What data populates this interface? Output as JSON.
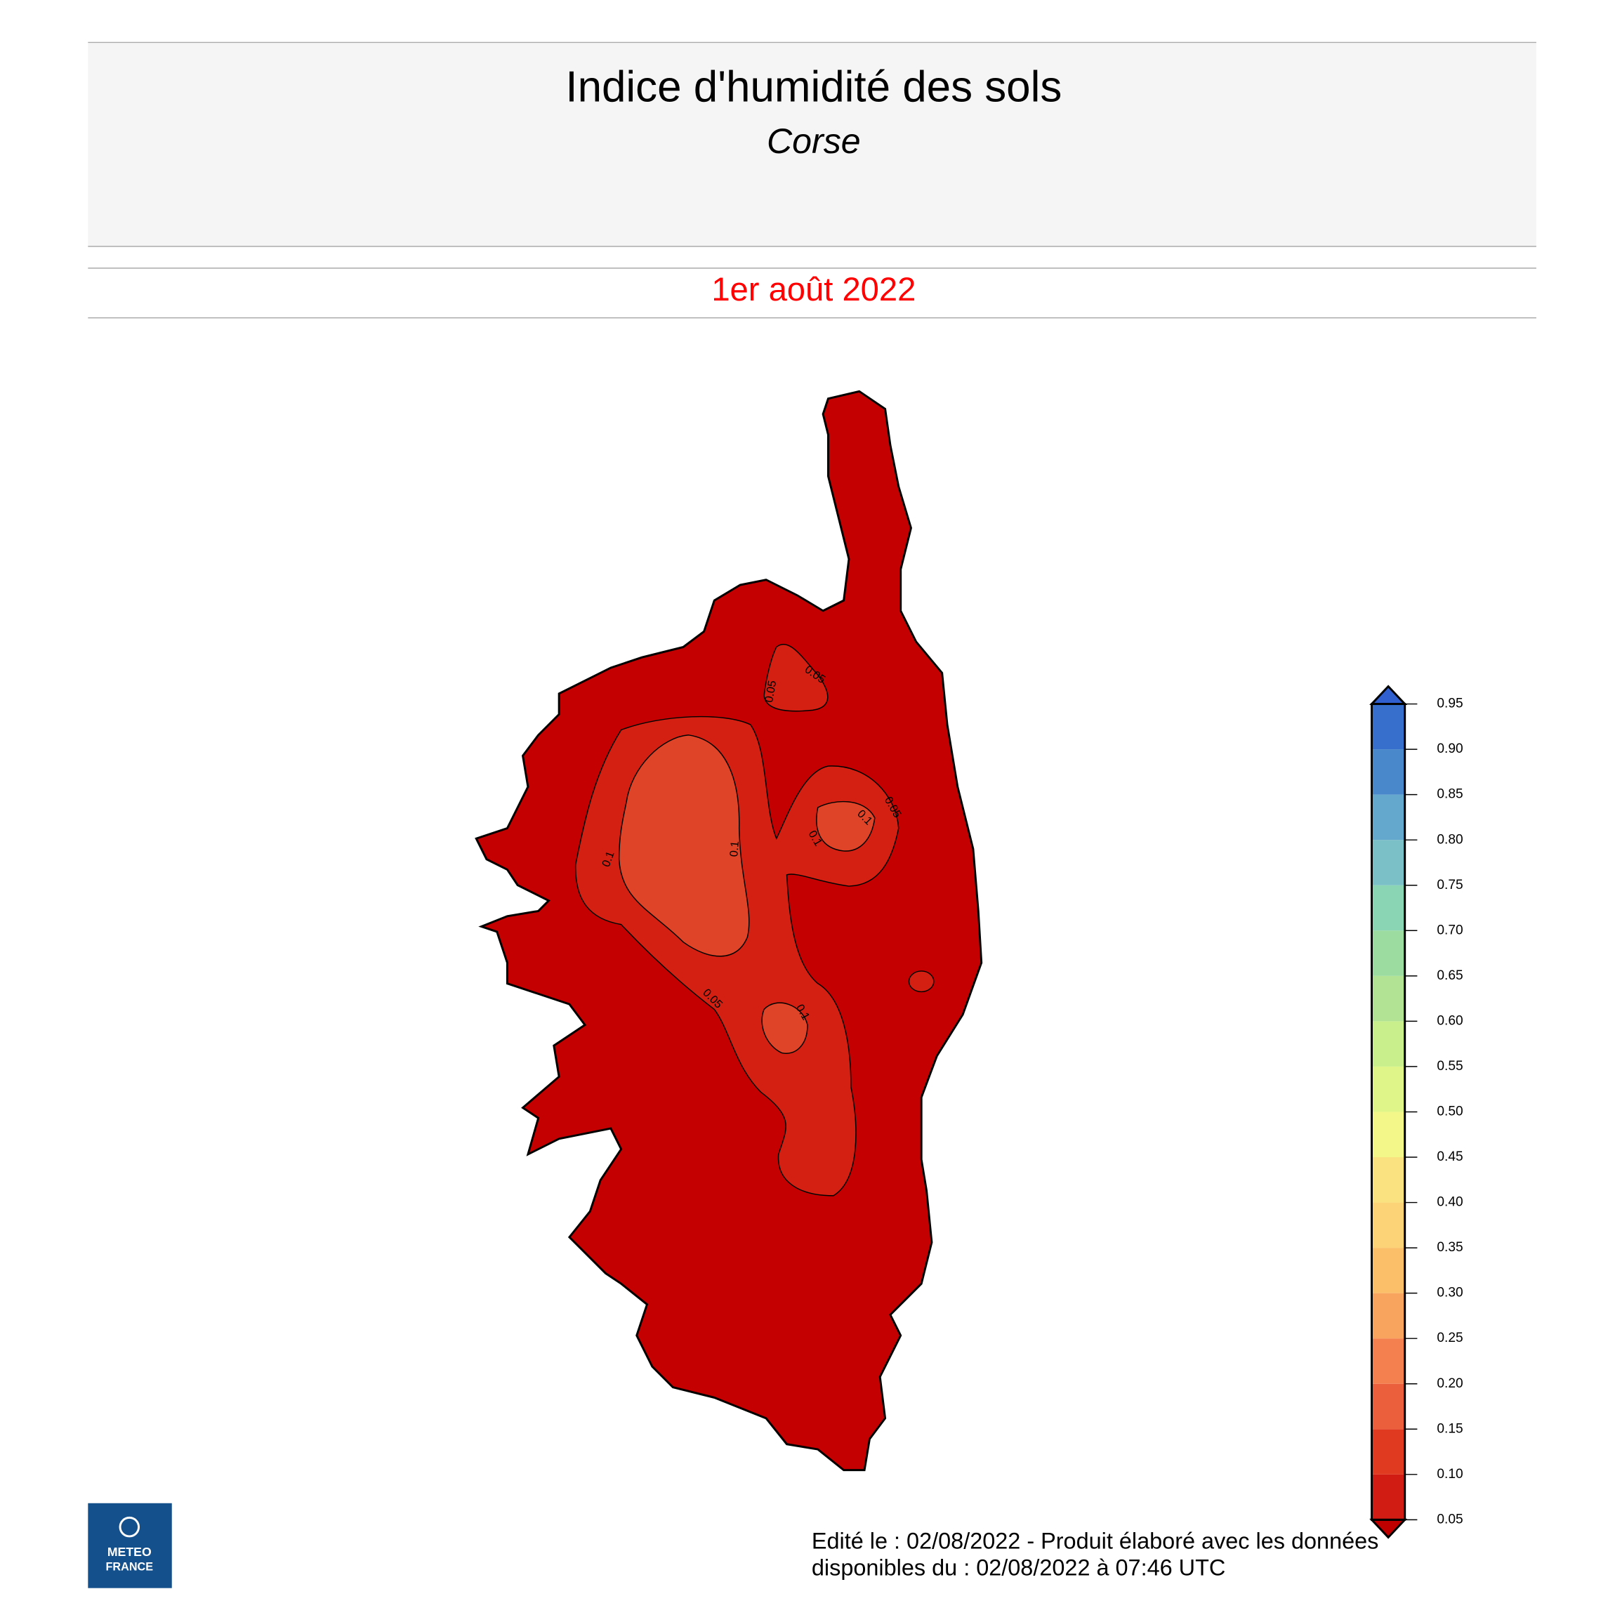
{
  "header": {
    "title": "Indice d'humidité des sols",
    "subtitle": "Corse"
  },
  "date": "1er août 2022",
  "map": {
    "contour_labels": [
      0.05,
      0.05,
      0.05,
      0.1,
      0.1,
      0.1,
      0.1,
      0.05,
      0.1
    ]
  },
  "legend": {
    "ticks": [
      0.05,
      {
        "value": 0.1,
        "label": "0.10"
      },
      0.15,
      {
        "value": 0.2,
        "label": "0.20"
      },
      0.25,
      {
        "value": 0.3,
        "label": "0.30"
      },
      0.35,
      {
        "value": 0.4,
        "label": "0.40"
      },
      0.45,
      {
        "value": 0.5,
        "label": "0.50"
      },
      0.55,
      {
        "value": 0.6,
        "label": "0.60"
      },
      0.65,
      {
        "value": 0.7,
        "label": "0.70"
      },
      0.75,
      {
        "value": 0.8,
        "label": "0.80"
      },
      0.85,
      {
        "value": 0.9,
        "label": "0.90"
      },
      0.95
    ],
    "colors": [
      "#d01c12",
      "#e03a20",
      "#ec5f3c",
      "#f4804f",
      "#f8a35e",
      "#fbbf6a",
      "#fcd477",
      "#f9e27f",
      "#f3f78a",
      "#dff58a",
      "#c8ef8c",
      "#b2e394",
      "#9cdca0",
      "#8ad6b4",
      "#7ac0c6",
      "#64a8cd",
      "#4a88cc",
      "#3670cc"
    ],
    "under_color": "#c00000",
    "over_color": "#3060d0"
  },
  "footer": [
    "Edité le : 02/08/2022 - Produit élaboré avec les données",
    "disponibles du : 02/08/2022 à 07:46 UTC"
  ],
  "logo": [
    "METEO",
    "FRANCE"
  ]
}
